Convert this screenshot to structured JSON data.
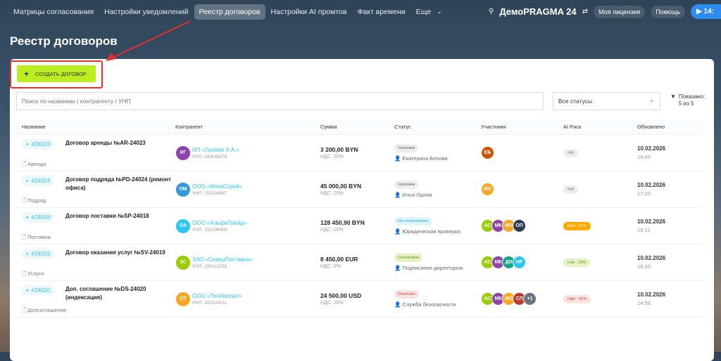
{
  "nav": {
    "items": [
      "Матрицы согласования",
      "Настройки уведомлений",
      "Реестр договоров",
      "Настройки AI промтов",
      "Факт времени",
      "Еще"
    ],
    "active": 2,
    "brand": "ДемоPRAGMA 24",
    "license": "Моя лицензия",
    "help": "Помощь",
    "time": "14:"
  },
  "page": {
    "title": "Реестр договоров",
    "create_label": "СОЗДАТЬ ДОГОВОР",
    "search_placeholder": "Поиск по названию / контрагенту / УНП",
    "status_select": "Все статусы",
    "shown_label": "Показано:",
    "shown_value": "5 из 5"
  },
  "table": {
    "headers": [
      "Название",
      "Контрагент",
      "Сумма",
      "Статус",
      "Участники",
      "AI Риск",
      "Обновлено"
    ],
    "rows": [
      {
        "id": "#24023",
        "name": "Договор аренды №AR-24023",
        "type": "Аренда",
        "cp_initials": "ИГ",
        "cp_color": "#8e44ad",
        "cp": "ИП «Громов А.А.»",
        "unp": "УНП: 290045678",
        "sum": "3 200,00 BYN",
        "vat": "НДС: 20%",
        "status": "Черновик",
        "status_kind": "draft",
        "owner": "Екатерина Белова",
        "participants": [
          {
            "i": "ЕБ",
            "c": "#d35400"
          }
        ],
        "risk": "N/A",
        "risk_kind": "na",
        "date": "10.02.2026",
        "time": "19:45"
      },
      {
        "id": "#24024",
        "name": "Договор подряда №PD-24024 (ремонт офиса)",
        "type": "Подряд",
        "cp_initials": "ОМ",
        "cp_color": "#3498db",
        "cp": "ООО «МегаСтрой»",
        "unp": "УНП: 191234567",
        "sum": "45 000,00 BYN",
        "vat": "НДС: 20%",
        "status": "Черновик",
        "status_kind": "draft",
        "owner": "Илья Орлов",
        "participants": [
          {
            "i": "ИО",
            "c": "#f5a623"
          }
        ],
        "risk": "N/A",
        "risk_kind": "na",
        "date": "10.02.2026",
        "time": "17:20"
      },
      {
        "id": "#24018",
        "name": "Договор поставки №SP-24018",
        "type": "Поставка",
        "cp_initials": "ОА",
        "cp_color": "#2fc6f6",
        "cp": "ООО «АльфаТрейд»",
        "unp": "УНП: 192334455",
        "sum": "128 450,90 BYN",
        "vat": "НДС: 20%",
        "status": "На согласовании",
        "status_kind": "review",
        "owner": "Юридическая проверка",
        "participants": [
          {
            "i": "АС",
            "c": "#9acd00"
          },
          {
            "i": "МК",
            "c": "#8e44ad"
          },
          {
            "i": "ИО",
            "c": "#f5a623"
          },
          {
            "i": "ОП",
            "c": "#2c3e50"
          }
        ],
        "risk": "Med · 57%",
        "risk_kind": "med",
        "date": "10.02.2026",
        "time": "18:12"
      },
      {
        "id": "#24019",
        "name": "Договор оказания услуг №SV-24019",
        "type": "Услуги",
        "cp_initials": "ЗС",
        "cp_color": "#9acd00",
        "cp": "ЗАО «СеверПоставка»",
        "unp": "УНП: 190112233",
        "sum": "8 450,00 EUR",
        "vat": "НДС: 0%",
        "status": "Согласован",
        "status_kind": "ok",
        "owner": "Подписание директором",
        "participants": [
          {
            "i": "АС",
            "c": "#9acd00"
          },
          {
            "i": "МК",
            "c": "#8e44ad"
          },
          {
            "i": "ДИ",
            "c": "#16a085"
          },
          {
            "i": "НР",
            "c": "#2fc6f6"
          }
        ],
        "risk": "Low · 12%",
        "risk_kind": "low",
        "date": "10.02.2026",
        "time": "16:30"
      },
      {
        "id": "#24020",
        "name": "Доп. соглашение №DS-24020 (индексация)",
        "type": "Допсоглашение",
        "cp_initials": "ОТ",
        "cp_color": "#f5a623",
        "cp": "ООО «ТехИмпорт»",
        "unp": "УНП: 193220011",
        "sum": "24 500,00 USD",
        "vat": "НДС: 20%",
        "status": "Отклонён",
        "status_kind": "rej",
        "owner": "Служба безопасности",
        "participants": [
          {
            "i": "АС",
            "c": "#9acd00"
          },
          {
            "i": "МК",
            "c": "#8e44ad"
          },
          {
            "i": "ИО",
            "c": "#f5a623"
          },
          {
            "i": "СЛ",
            "c": "#c0392b"
          },
          {
            "i": "+1",
            "c": "#6b7280"
          }
        ],
        "risk": "High · 81%",
        "risk_kind": "high",
        "date": "10.02.2026",
        "time": "14:58"
      }
    ]
  },
  "colors": {
    "accent": "#bbed21",
    "link": "#2fc6f6",
    "annotation": "#e03131"
  }
}
